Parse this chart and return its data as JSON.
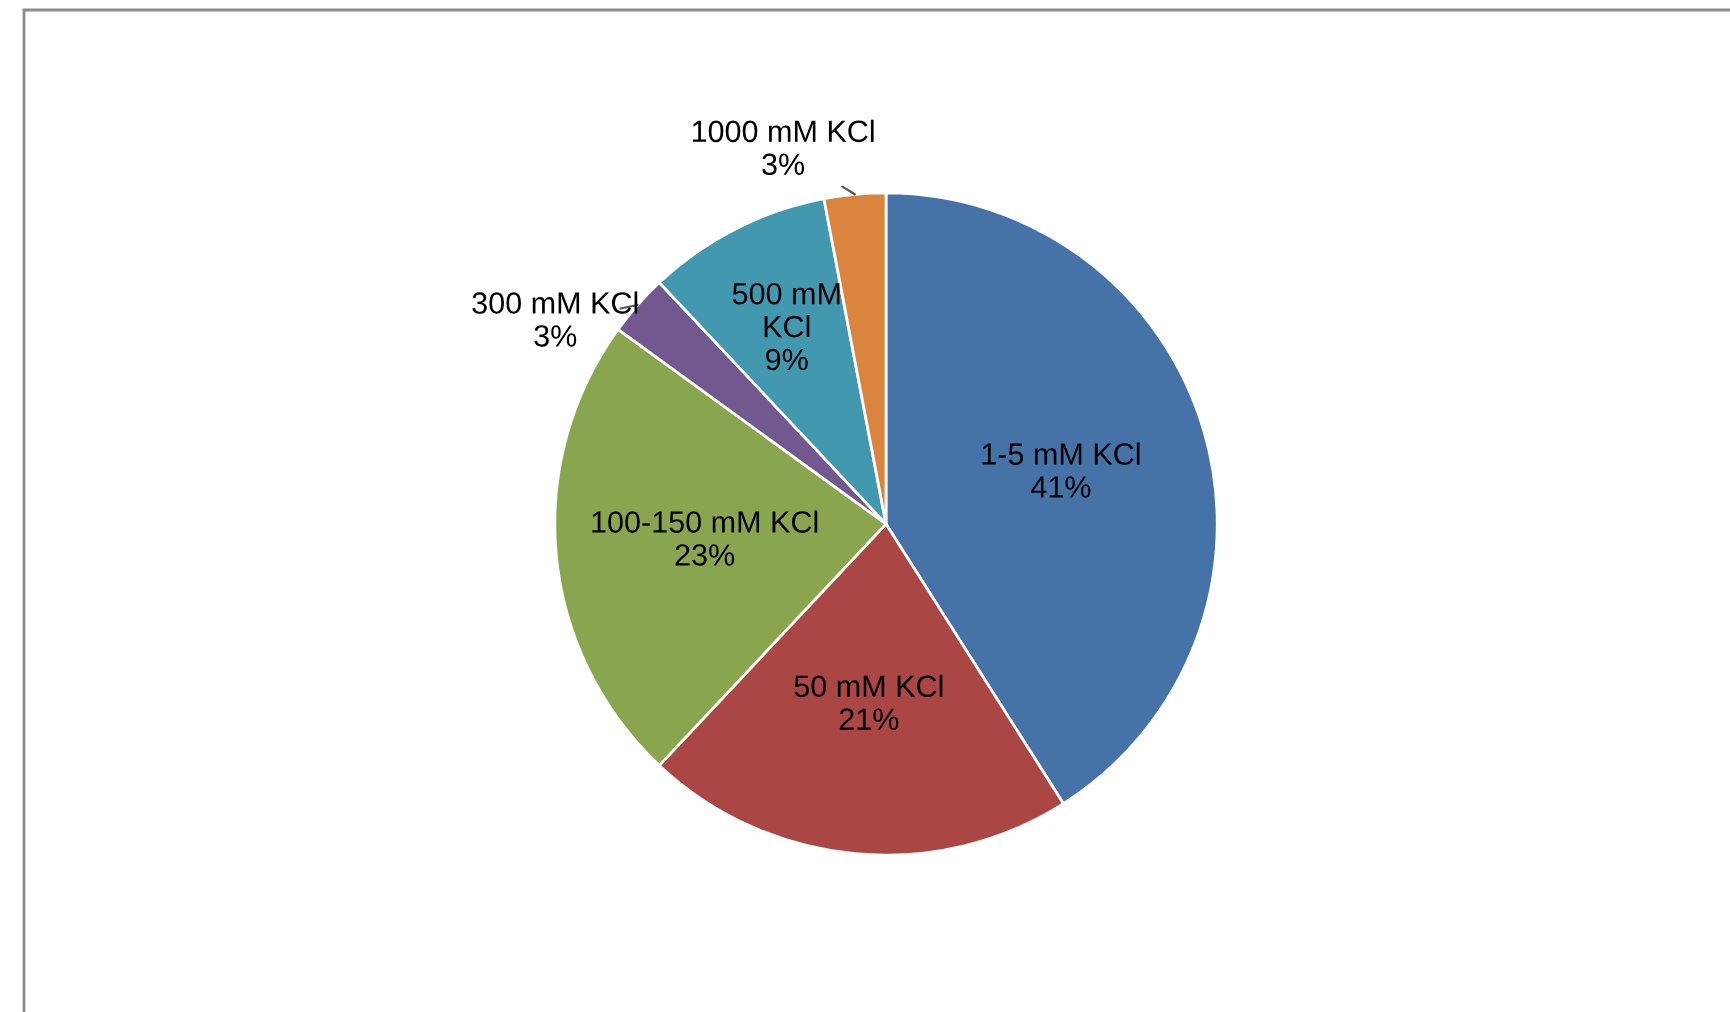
{
  "chart_data": {
    "type": "pie",
    "categories": [
      "1-5 mM KCl",
      "50 mM KCl",
      "100-150 mM KCl",
      "300 mM KCl",
      "500 mM KCl",
      "1000 mM KCl"
    ],
    "values": [
      41,
      21,
      23,
      3,
      9,
      3
    ],
    "value_labels": [
      "41%",
      "21%",
      "23%",
      "3%",
      "9%",
      "3%"
    ],
    "colors": [
      "#4572a7",
      "#aa4643",
      "#89a54e",
      "#71588f",
      "#4198af",
      "#db843d"
    ],
    "legend": false
  }
}
